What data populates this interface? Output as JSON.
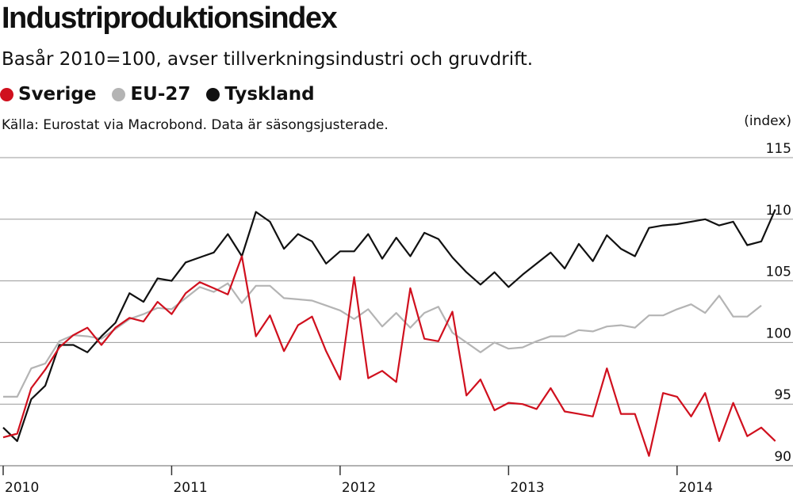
{
  "header": {
    "title": "Industriproduktionsindex",
    "subtitle": "Basår 2010=100, avser tillverkningsindustri och gruvdrift.",
    "source": "Källa: Eurostat via Macrobond. Data är säsongsjusterade.",
    "unit": "(index)"
  },
  "legend": [
    {
      "label": "Sverige",
      "color": "#d0101e"
    },
    {
      "label": "EU-27",
      "color": "#b4b4b4"
    },
    {
      "label": "Tyskland",
      "color": "#111111"
    }
  ],
  "chart_data": {
    "type": "line",
    "title": "Industriproduktionsindex",
    "ylabel": "(index)",
    "ylim": [
      90,
      115
    ],
    "yticks": [
      115,
      110,
      105,
      100,
      95,
      90
    ],
    "xticks": [
      "2010",
      "2011",
      "2012",
      "2013",
      "2014"
    ],
    "x_start": "2010-01",
    "x_end": "2014-06",
    "x_step": "month",
    "grid": true,
    "legend_position": "top-left",
    "series": [
      {
        "name": "Sverige",
        "color": "#d0101e",
        "values": [
          92.3,
          92.6,
          96.3,
          97.8,
          99.6,
          100.6,
          101.2,
          99.8,
          101.2,
          102.0,
          101.7,
          103.3,
          102.3,
          104.0,
          104.9,
          104.4,
          103.9,
          107.0,
          100.5,
          102.2,
          99.3,
          101.4,
          102.1,
          99.3,
          97.0,
          105.3,
          97.1,
          97.7,
          96.8,
          104.4,
          100.3,
          100.1,
          102.5,
          95.7,
          97.0,
          94.5,
          95.1,
          95.0,
          94.6,
          96.3,
          94.4,
          94.2,
          94.0,
          97.9,
          94.2,
          94.2,
          90.8,
          95.9,
          95.6,
          94.0,
          95.9,
          92.0,
          95.1,
          92.4,
          93.1,
          92.0
        ]
      },
      {
        "name": "EU-27",
        "color": "#b4b4b4",
        "values": [
          95.6,
          95.6,
          97.9,
          98.3,
          100.1,
          100.6,
          100.5,
          100.3,
          101.1,
          101.9,
          102.3,
          102.8,
          102.7,
          103.6,
          104.5,
          104.1,
          104.8,
          103.2,
          104.6,
          104.6,
          103.6,
          103.5,
          103.4,
          103.0,
          102.6,
          101.9,
          102.7,
          101.3,
          102.4,
          101.2,
          102.4,
          102.9,
          100.8,
          100.0,
          99.2,
          100.0,
          99.5,
          99.6,
          100.1,
          100.5,
          100.5,
          101.0,
          100.9,
          101.3,
          101.4,
          101.2,
          102.2,
          102.2,
          102.7,
          103.1,
          102.4,
          103.8,
          102.1,
          102.1,
          103.0
        ]
      },
      {
        "name": "Tyskland",
        "color": "#111111",
        "values": [
          93.1,
          92.0,
          95.4,
          96.5,
          99.8,
          99.8,
          99.2,
          100.5,
          101.6,
          104.0,
          103.3,
          105.2,
          105.0,
          106.5,
          106.9,
          107.3,
          108.8,
          107.0,
          110.6,
          109.8,
          107.6,
          108.8,
          108.2,
          106.4,
          107.4,
          107.4,
          108.8,
          106.8,
          108.5,
          107.0,
          108.9,
          108.4,
          106.9,
          105.7,
          104.7,
          105.7,
          104.5,
          105.5,
          106.4,
          107.3,
          106.0,
          108.0,
          106.6,
          108.7,
          107.6,
          107.0,
          109.3,
          109.5,
          109.6,
          109.8,
          110.0,
          109.5,
          109.8,
          107.9,
          108.2,
          110.8
        ]
      }
    ]
  }
}
